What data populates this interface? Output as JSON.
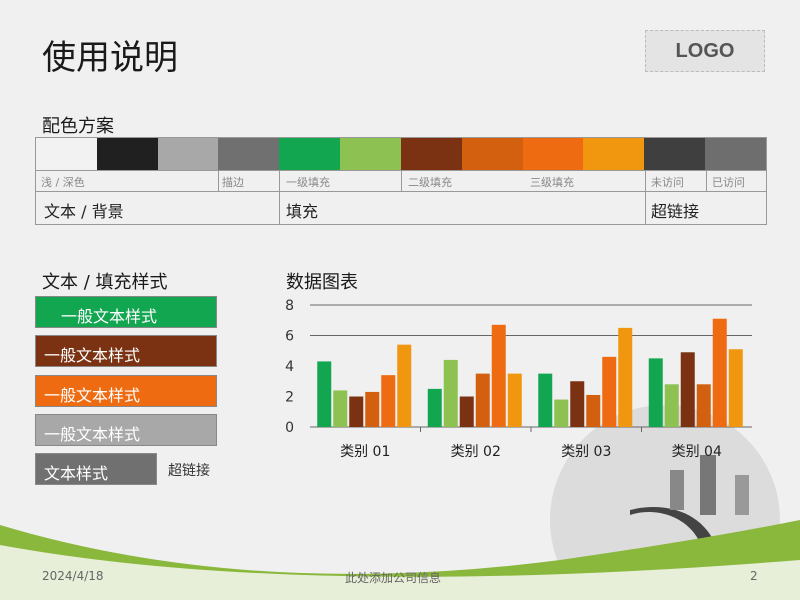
{
  "title": "使用说明",
  "logo": "LOGO",
  "palette": {
    "heading": "配色方案",
    "colors": [
      "#f2f2f2",
      "#202020",
      "#a8a8a8",
      "#707070",
      "#12a651",
      "#8dc152",
      "#7a3212",
      "#d2600f",
      "#ee6b12",
      "#f0960f",
      "#3f3f3f",
      "#6e6e6e"
    ],
    "labels": [
      "浅 / 深色",
      "描边",
      "一级填充",
      "二级填充",
      "三级填充",
      "未访问",
      "已访问"
    ],
    "groups": [
      "文本 / 背景",
      "填充",
      "超链接"
    ]
  },
  "styles": {
    "heading": "文本 / 填充样式",
    "items": [
      {
        "label": "一般文本样式",
        "bg": "#12a651"
      },
      {
        "label": "一般文本样式",
        "bg": "#7a3212"
      },
      {
        "label": "一般文本样式",
        "bg": "#ee6b12"
      },
      {
        "label": "一般文本样式",
        "bg": "#a8a8a8"
      },
      {
        "label": "文本样式",
        "bg": "#707070"
      }
    ],
    "link": "超链接"
  },
  "chart_heading": "数据图表",
  "chart_data": {
    "type": "bar",
    "categories": [
      "类别 01",
      "类别 02",
      "类别 03",
      "类别 04"
    ],
    "ylim": [
      0,
      8
    ],
    "yticks": [
      "0",
      "2",
      "4",
      "6",
      "8"
    ],
    "grid": true,
    "colors": [
      "#12a651",
      "#8dc152",
      "#7a3212",
      "#d2600f",
      "#ee6b12",
      "#f0960f"
    ],
    "series": [
      {
        "values": [
          4.3,
          2.5,
          3.5,
          4.5
        ]
      },
      {
        "values": [
          2.4,
          4.4,
          1.8,
          2.8
        ]
      },
      {
        "values": [
          2.0,
          2.0,
          3.0,
          4.9
        ]
      },
      {
        "values": [
          2.3,
          3.5,
          2.1,
          2.8
        ]
      },
      {
        "values": [
          3.4,
          6.7,
          4.6,
          7.1
        ]
      },
      {
        "values": [
          5.4,
          3.5,
          6.5,
          5.1
        ]
      }
    ]
  },
  "footer": {
    "date": "2024/4/18",
    "company": "此处添加公司信息",
    "page": "2"
  }
}
